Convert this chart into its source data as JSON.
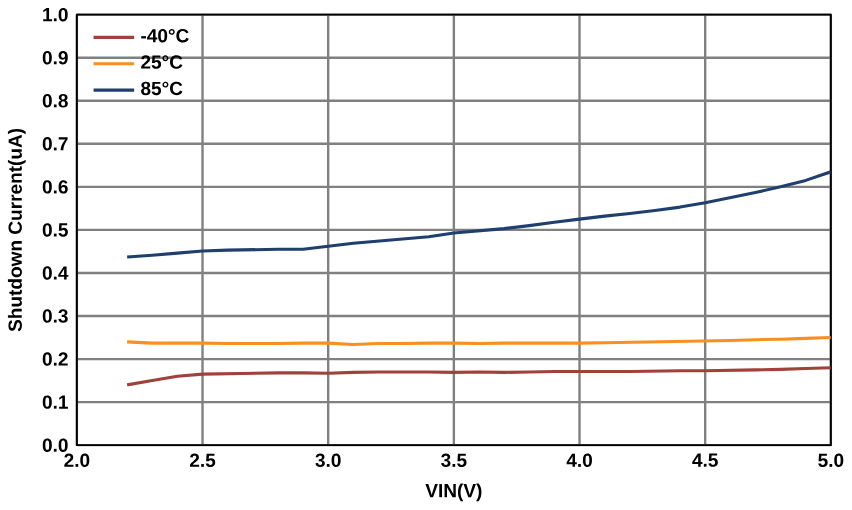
{
  "chart_data": {
    "type": "line",
    "xlabel": "VIN(V)",
    "ylabel": "Shutdown Current(uA)",
    "xlim": [
      2.0,
      5.0
    ],
    "ylim": [
      0,
      1.0
    ],
    "xticks": [
      {
        "value": 2.0,
        "label": "2.0"
      },
      {
        "value": 2.5,
        "label": "2.5"
      },
      {
        "value": 3.0,
        "label": "3.0"
      },
      {
        "value": 3.5,
        "label": "3.5"
      },
      {
        "value": 4.0,
        "label": "4.0"
      },
      {
        "value": 4.5,
        "label": "4.5"
      },
      {
        "value": 5.0,
        "label": "5.0"
      }
    ],
    "yticks": [
      {
        "value": 0,
        "label": "0.0"
      },
      {
        "value": 0.1,
        "label": "0.1"
      },
      {
        "value": 0.2,
        "label": "0.2"
      },
      {
        "value": 0.3,
        "label": "0.3"
      },
      {
        "value": 0.4,
        "label": "0.4"
      },
      {
        "value": 0.5,
        "label": "0.5"
      },
      {
        "value": 0.6,
        "label": "0.6"
      },
      {
        "value": 0.7,
        "label": "0.7"
      },
      {
        "value": 0.8,
        "label": "0.8"
      },
      {
        "value": 0.9,
        "label": "0.9"
      },
      {
        "value": 1.0,
        "label": "1.0"
      }
    ],
    "x": [
      2.2,
      2.3,
      2.4,
      2.5,
      2.6,
      2.7,
      2.8,
      2.9,
      3.0,
      3.1,
      3.2,
      3.3,
      3.4,
      3.5,
      3.6,
      3.7,
      3.8,
      3.9,
      4.0,
      4.1,
      4.2,
      4.3,
      4.4,
      4.5,
      4.6,
      4.7,
      4.8,
      4.9,
      5.0
    ],
    "series": [
      {
        "name": "-40°C",
        "color": "#a0413c",
        "values": [
          0.14,
          0.15,
          0.16,
          0.165,
          0.166,
          0.167,
          0.168,
          0.168,
          0.167,
          0.169,
          0.17,
          0.17,
          0.17,
          0.169,
          0.17,
          0.169,
          0.17,
          0.171,
          0.171,
          0.171,
          0.171,
          0.172,
          0.173,
          0.173,
          0.174,
          0.175,
          0.176,
          0.178,
          0.18
        ]
      },
      {
        "name": "25°C",
        "color": "#f7901e",
        "values": [
          0.24,
          0.237,
          0.237,
          0.237,
          0.236,
          0.236,
          0.236,
          0.237,
          0.237,
          0.234,
          0.236,
          0.236,
          0.237,
          0.237,
          0.236,
          0.237,
          0.237,
          0.237,
          0.237,
          0.238,
          0.239,
          0.24,
          0.241,
          0.242,
          0.243,
          0.245,
          0.246,
          0.248,
          0.25
        ]
      },
      {
        "name": "85°C",
        "color": "#1f3f6e",
        "values": [
          0.437,
          0.441,
          0.446,
          0.451,
          0.453,
          0.454,
          0.455,
          0.455,
          0.462,
          0.469,
          0.474,
          0.479,
          0.484,
          0.493,
          0.498,
          0.503,
          0.51,
          0.518,
          0.525,
          0.532,
          0.538,
          0.545,
          0.553,
          0.563,
          0.575,
          0.587,
          0.6,
          0.615,
          0.635
        ]
      }
    ],
    "grid": true,
    "legend": "top left"
  }
}
